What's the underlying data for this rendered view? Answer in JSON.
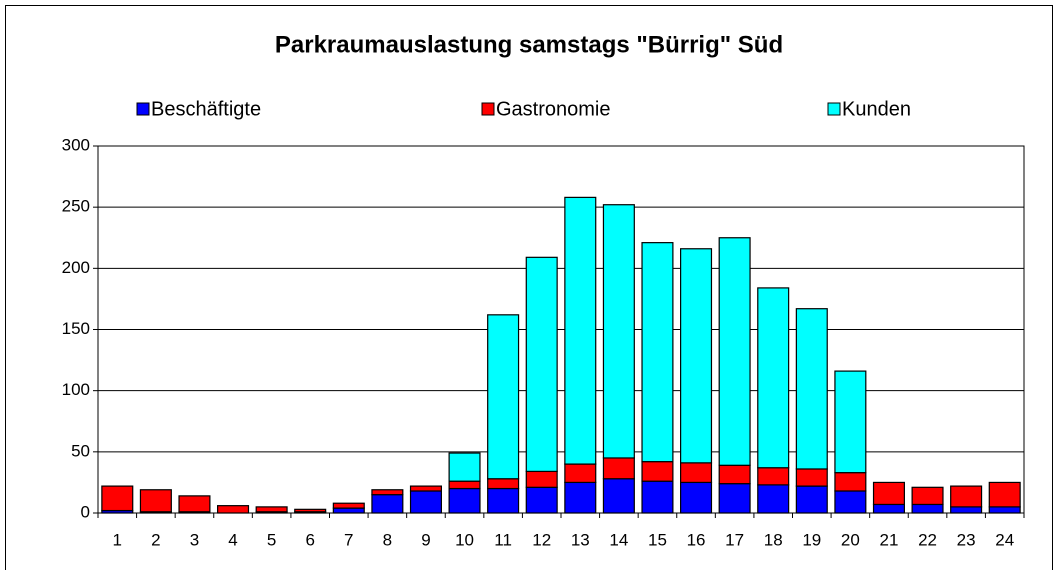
{
  "chart_data": {
    "type": "bar",
    "stacked": true,
    "title": "Parkraumauslastung samstags \"Bürrig\" Süd",
    "categories": [
      "1",
      "2",
      "3",
      "4",
      "5",
      "6",
      "7",
      "8",
      "9",
      "10",
      "11",
      "12",
      "13",
      "14",
      "15",
      "16",
      "17",
      "18",
      "19",
      "20",
      "21",
      "22",
      "23",
      "24"
    ],
    "series": [
      {
        "name": "Beschäftigte",
        "color": "#0000ff",
        "values": [
          2,
          1,
          1,
          0,
          1,
          1,
          4,
          15,
          18,
          20,
          20,
          21,
          25,
          28,
          26,
          25,
          24,
          23,
          22,
          18,
          7,
          7,
          5,
          5
        ]
      },
      {
        "name": "Gastronomie",
        "color": "#ff0000",
        "values": [
          20,
          18,
          13,
          6,
          4,
          2,
          4,
          4,
          4,
          6,
          8,
          13,
          15,
          17,
          16,
          16,
          15,
          14,
          14,
          15,
          18,
          14,
          17,
          20
        ]
      },
      {
        "name": "Kunden",
        "color": "#00ffff",
        "values": [
          0,
          0,
          0,
          0,
          0,
          0,
          0,
          0,
          0,
          23,
          134,
          175,
          218,
          207,
          179,
          175,
          186,
          147,
          131,
          83,
          0,
          0,
          0,
          0
        ]
      }
    ],
    "ylim": [
      0,
      300
    ],
    "yticks": [
      0,
      50,
      100,
      150,
      200,
      250,
      300
    ],
    "grid": true
  }
}
